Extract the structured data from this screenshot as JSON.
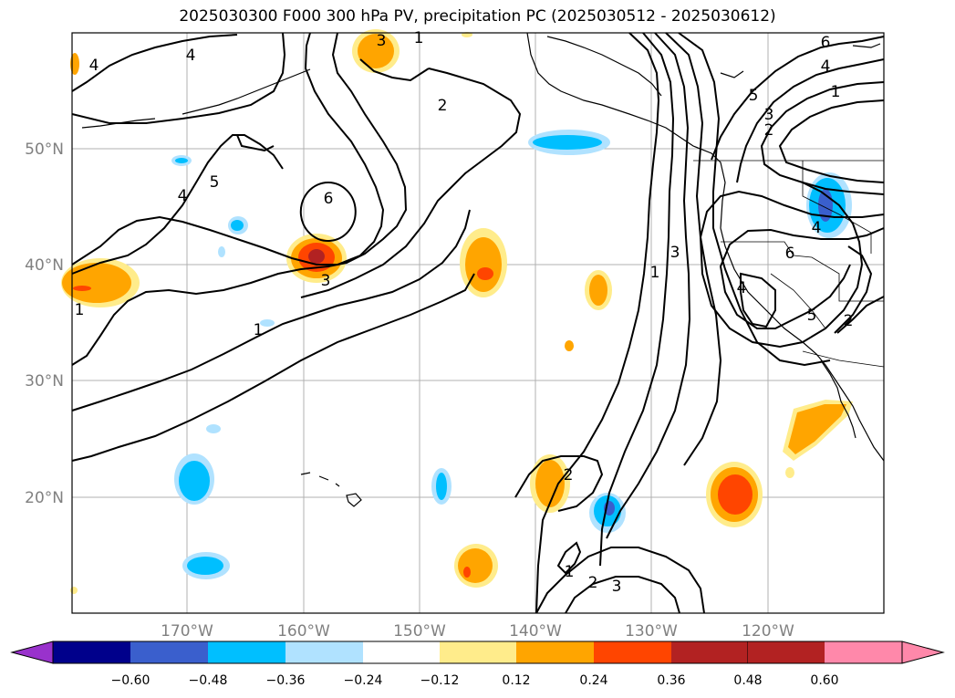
{
  "title": "2025030300 F000 300 hPa PV, precipitation PC (2025030512 - 2025030612)",
  "map": {
    "lon_ticks": [
      "170°W",
      "160°W",
      "150°W",
      "140°W",
      "130°W",
      "120°W"
    ],
    "lat_ticks": [
      "50°N",
      "40°N",
      "30°N",
      "20°N"
    ],
    "contour_labels": [
      "1",
      "2",
      "3",
      "4",
      "5",
      "6"
    ],
    "contour_color": "#000000",
    "grid_color": "#b0b0b0"
  },
  "colorbar": {
    "ticks": [
      "−0.60",
      "−0.48",
      "−0.36",
      "−0.24",
      "−0.12",
      "0.12",
      "0.24",
      "0.36",
      "0.48",
      "0.60"
    ],
    "colors": [
      "#9932cc",
      "#00008b",
      "#3a5fcd",
      "#00bfff",
      "#b0e2ff",
      "#ffffff",
      "#ffec8b",
      "#ffa500",
      "#ff4500",
      "#b22222",
      "#ff88aa"
    ]
  }
}
